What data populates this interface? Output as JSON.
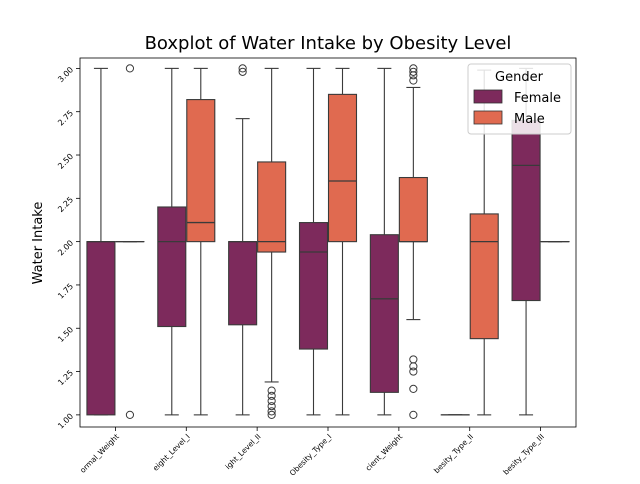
{
  "chart_data": {
    "type": "box",
    "title": "Boxplot of Water Intake by Obesity Level",
    "xlabel": "",
    "ylabel": "Water Intake",
    "ylim": [
      0.93,
      3.06
    ],
    "yticks": [
      "1.00",
      "1.25",
      "1.50",
      "1.75",
      "2.00",
      "2.25",
      "2.50",
      "2.75",
      "3.00"
    ],
    "ytick_values": [
      1.0,
      1.25,
      1.5,
      1.75,
      2.0,
      2.25,
      2.5,
      2.75,
      3.0
    ],
    "categories": [
      "Normal_Weight",
      "Overweight_Level_I",
      "Overweight_Level_II",
      "Obesity_Type_I",
      "Insufficient_Weight",
      "Obesity_Type_II",
      "Obesity_Type_III"
    ],
    "category_labels_visible": [
      "ormal_Weight",
      "eight_Level_I",
      "ight_Level_II",
      "Obesity_Type_I",
      "cient_Weight",
      "besity_Type_II",
      "besity_Type_III"
    ],
    "grid": false,
    "legend": {
      "title": "Gender",
      "position": "top-right",
      "entries": [
        "Female",
        "Male"
      ]
    },
    "series": [
      {
        "name": "Female",
        "color": "#7d2a5c",
        "boxes": [
          {
            "q1": 1.0,
            "median": 2.0,
            "q3": 2.0,
            "low": 1.0,
            "high": 3.0,
            "outliers": []
          },
          {
            "q1": 1.51,
            "median": 2.0,
            "q3": 2.2,
            "low": 1.0,
            "high": 3.0,
            "outliers": []
          },
          {
            "q1": 1.52,
            "median": 2.0,
            "q3": 2.0,
            "low": 1.0,
            "high": 2.71,
            "outliers": [
              2.98,
              3.0
            ]
          },
          {
            "q1": 1.38,
            "median": 1.94,
            "q3": 2.11,
            "low": 1.0,
            "high": 3.0,
            "outliers": []
          },
          {
            "q1": 1.13,
            "median": 1.67,
            "q3": 2.04,
            "low": 1.0,
            "high": 3.0,
            "outliers": []
          },
          {
            "q1": 1.0,
            "median": 1.0,
            "q3": 1.0,
            "low": 1.0,
            "high": 1.0,
            "outliers": []
          },
          {
            "q1": 1.66,
            "median": 2.44,
            "q3": 2.7,
            "low": 1.0,
            "high": 3.0,
            "outliers": []
          }
        ]
      },
      {
        "name": "Male",
        "color": "#e06a50",
        "boxes": [
          {
            "q1": 2.0,
            "median": 2.0,
            "q3": 2.0,
            "low": 2.0,
            "high": 2.0,
            "outliers": [
              1.0,
              3.0
            ]
          },
          {
            "q1": 2.0,
            "median": 2.11,
            "q3": 2.82,
            "low": 1.0,
            "high": 3.0,
            "outliers": []
          },
          {
            "q1": 1.94,
            "median": 2.0,
            "q3": 2.46,
            "low": 1.19,
            "high": 3.0,
            "outliers": [
              1.0,
              1.02,
              1.05,
              1.08,
              1.11,
              1.14
            ]
          },
          {
            "q1": 2.0,
            "median": 2.35,
            "q3": 2.85,
            "low": 1.0,
            "high": 3.0,
            "outliers": []
          },
          {
            "q1": 2.0,
            "median": 2.0,
            "q3": 2.37,
            "low": 1.55,
            "high": 2.89,
            "outliers": [
              1.0,
              1.15,
              1.25,
              1.28,
              1.32,
              2.93,
              2.96,
              2.98,
              3.0
            ]
          },
          {
            "q1": 1.44,
            "median": 2.0,
            "q3": 2.16,
            "low": 1.0,
            "high": 2.99,
            "outliers": []
          },
          {
            "q1": 2.0,
            "median": 2.0,
            "q3": 2.0,
            "low": 2.0,
            "high": 2.0,
            "outliers": []
          }
        ]
      }
    ]
  }
}
